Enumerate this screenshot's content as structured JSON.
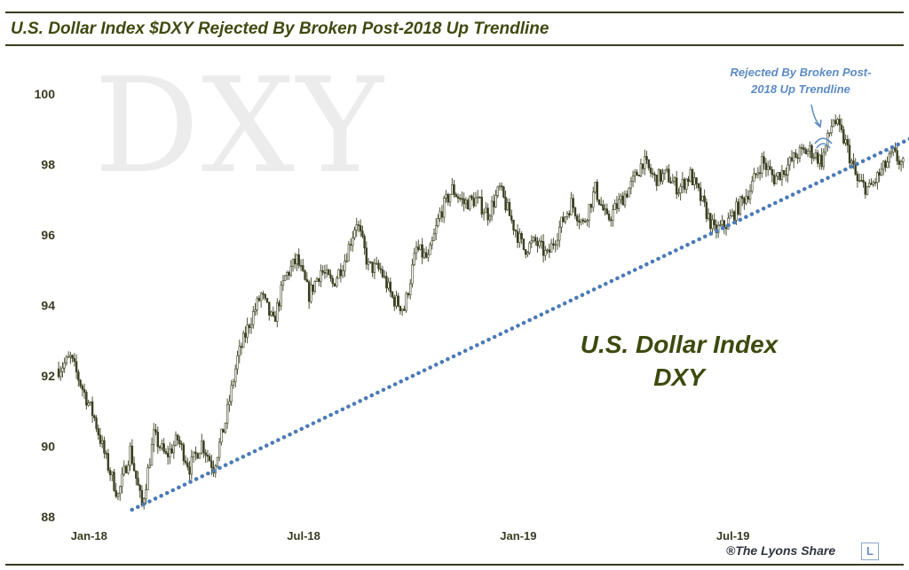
{
  "title": "U.S. Dollar Index $DXY Rejected By Broken Post-2018 Up Trendline",
  "watermark": "DXY",
  "main_label": {
    "line1": "U.S. Dollar Index",
    "line2": "DXY"
  },
  "annotation": {
    "line1": "Rejected By Broken Post-",
    "line2": "2018 Up Trendline"
  },
  "copyright": "®The Lyons Share",
  "logo_letter": "L",
  "colors": {
    "candles": "#3a4020",
    "trendline": "#4a7ab8",
    "title": "#3f4a10",
    "annotation": "#5b8bc4"
  },
  "chart_data": {
    "type": "candlestick",
    "title": "U.S. Dollar Index $DXY Rejected By Broken Post-2018 Up Trendline",
    "ylim": [
      88,
      100.5
    ],
    "yticks": [
      88,
      90,
      92,
      94,
      96,
      98,
      100
    ],
    "xticks": [
      "Jan-18",
      "Jul-18",
      "Jan-19",
      "Jul-19"
    ],
    "grid": false,
    "series": [
      {
        "kind": "price",
        "points": [
          [
            "Dec-17",
            92.2
          ],
          [
            "Dec-17",
            92.5
          ],
          [
            "Jan-18",
            90.8
          ],
          [
            "Jan-18",
            89.6
          ],
          [
            "Jan-18",
            88.6
          ],
          [
            "Feb-18",
            89.9
          ],
          [
            "Feb-18",
            88.3
          ],
          [
            "Feb-18",
            90.3
          ],
          [
            "Mar-18",
            89.7
          ],
          [
            "Mar-18",
            90.2
          ],
          [
            "Mar-18",
            89.4
          ],
          [
            "Apr-18",
            90.1
          ],
          [
            "Apr-18",
            89.4
          ],
          [
            "Apr-18",
            90.7
          ],
          [
            "May-18",
            92.5
          ],
          [
            "May-18",
            93.5
          ],
          [
            "May-18",
            94.3
          ],
          [
            "Jun-18",
            93.5
          ],
          [
            "Jun-18",
            94.8
          ],
          [
            "Jun-18",
            95.3
          ],
          [
            "Jul-18",
            94.3
          ],
          [
            "Jul-18",
            95.0
          ],
          [
            "Jul-18",
            94.6
          ],
          [
            "Aug-18",
            95.3
          ],
          [
            "Aug-18",
            96.4
          ],
          [
            "Aug-18",
            95.1
          ],
          [
            "Sep-18",
            95.0
          ],
          [
            "Sep-18",
            94.2
          ],
          [
            "Sep-18",
            93.9
          ],
          [
            "Oct-18",
            95.6
          ],
          [
            "Oct-18",
            95.3
          ],
          [
            "Oct-18",
            96.6
          ],
          [
            "Nov-18",
            97.3
          ],
          [
            "Nov-18",
            96.9
          ],
          [
            "Nov-18",
            97.0
          ],
          [
            "Dec-18",
            96.6
          ],
          [
            "Dec-18",
            97.3
          ],
          [
            "Dec-18",
            96.4
          ],
          [
            "Jan-19",
            95.6
          ],
          [
            "Jan-19",
            95.8
          ],
          [
            "Jan-19",
            95.4
          ],
          [
            "Feb-19",
            96.2
          ],
          [
            "Feb-19",
            96.9
          ],
          [
            "Feb-19",
            96.3
          ],
          [
            "Mar-19",
            97.3
          ],
          [
            "Mar-19",
            96.4
          ],
          [
            "Mar-19",
            96.9
          ],
          [
            "Apr-19",
            97.4
          ],
          [
            "Apr-19",
            98.1
          ],
          [
            "Apr-19",
            97.6
          ],
          [
            "May-19",
            97.7
          ],
          [
            "May-19",
            97.3
          ],
          [
            "May-19",
            97.7
          ],
          [
            "Jun-19",
            96.9
          ],
          [
            "Jun-19",
            96.1
          ],
          [
            "Jun-19",
            96.3
          ],
          [
            "Jul-19",
            96.8
          ],
          [
            "Jul-19",
            97.3
          ],
          [
            "Jul-19",
            98.1
          ],
          [
            "Aug-19",
            97.6
          ],
          [
            "Aug-19",
            97.9
          ],
          [
            "Aug-19",
            98.3
          ],
          [
            "Sep-19",
            98.4
          ],
          [
            "Sep-19",
            98.1
          ],
          [
            "Sep-19",
            99.3
          ],
          [
            "Oct-19",
            98.6
          ],
          [
            "Oct-19",
            97.5
          ],
          [
            "Oct-19",
            97.3
          ],
          [
            "Nov-19",
            97.8
          ],
          [
            "Nov-19",
            98.3
          ],
          [
            "Nov-19",
            97.9
          ]
        ]
      },
      {
        "kind": "trendline",
        "start": [
          "Feb-18",
          88.2
        ],
        "end": [
          "Dec-19",
          98.9
        ]
      }
    ]
  }
}
